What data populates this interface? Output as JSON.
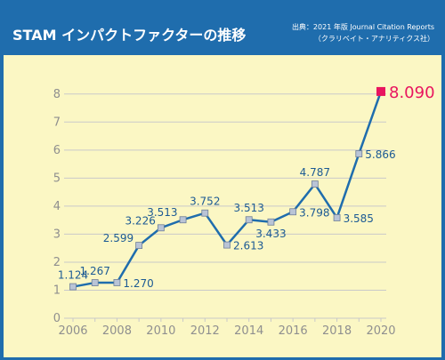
{
  "header": {
    "title": "STAM インパクトファクターの推移",
    "source_line1": "出典：2021 年版 Journal Citation Reports",
    "source_line2": "（クラリベイト・アナリティクス社）"
  },
  "colors": {
    "header_bg": "#1f6dad",
    "panel_bg": "#fbf7c4",
    "line": "#1f6dad",
    "marker_fill": "#b9c4d6",
    "highlight": "#e8155f",
    "grid": "#c9c9c9"
  },
  "chart_data": {
    "type": "line",
    "title": "STAM インパクトファクターの推移",
    "x": [
      2006,
      2007,
      2008,
      2009,
      2010,
      2011,
      2012,
      2013,
      2014,
      2015,
      2016,
      2017,
      2018,
      2019,
      2020
    ],
    "values": [
      1.124,
      1.267,
      1.27,
      2.599,
      3.226,
      3.513,
      3.752,
      2.613,
      3.513,
      3.433,
      3.798,
      4.787,
      3.585,
      5.866,
      8.09
    ],
    "value_labels": [
      "1.124",
      "1.267",
      "1.270",
      "2.599",
      "3.226",
      "3.513",
      "3.752",
      "2.613",
      "3.513",
      "3.433",
      "3.798",
      "4.787",
      "3.585",
      "5.866",
      "8.090"
    ],
    "label_positions": [
      "above",
      "above",
      "right",
      "left",
      "left",
      "left",
      "above",
      "right",
      "above",
      "below",
      "right",
      "above",
      "right",
      "right",
      "right"
    ],
    "highlight_last": true,
    "x_ticks": [
      "2006",
      "2008",
      "2010",
      "2012",
      "2014",
      "2016",
      "2018",
      "2020"
    ],
    "y_ticks": [
      "0",
      "1",
      "2",
      "3",
      "4",
      "5",
      "6",
      "7",
      "8"
    ],
    "ylim": [
      0,
      8.5
    ],
    "xlim": [
      2006,
      2020
    ],
    "grid": true,
    "xlabel": "",
    "ylabel": ""
  }
}
